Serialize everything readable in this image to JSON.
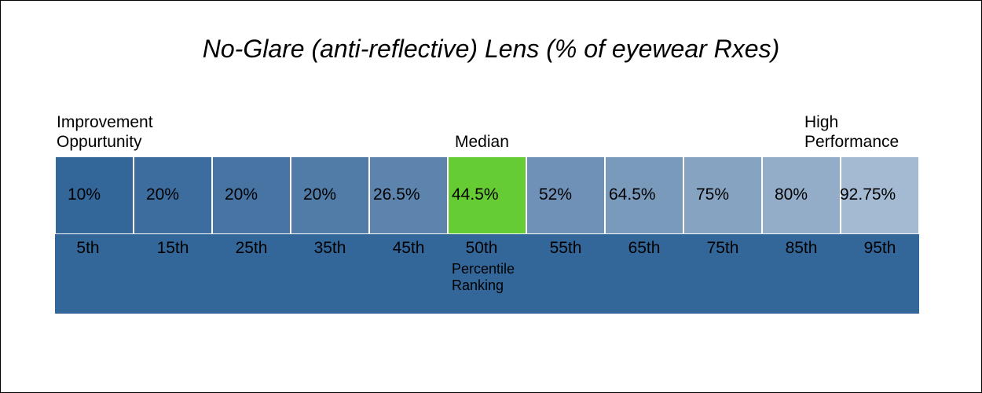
{
  "chart_data": {
    "type": "table",
    "title": "No-Glare (anti-reflective) Lens (% of eyewear Rxes)",
    "left_label": "Improvement\nOppurtunity",
    "median_label": "Median",
    "right_label": "High\nPerformance",
    "axis_label": "Percentile\nRanking",
    "categories": [
      "5th",
      "15th",
      "25th",
      "35th",
      "45th",
      "50th",
      "55th",
      "65th",
      "75th",
      "85th",
      "95th"
    ],
    "value_labels": [
      "10%",
      "20%",
      "20%",
      "20%",
      "26.5%",
      "44.5%",
      "52%",
      "64.5%",
      "75%",
      "80%",
      "92.75%"
    ],
    "values": [
      10,
      20,
      20,
      20,
      26.5,
      44.5,
      52,
      64.5,
      75,
      80,
      92.75
    ],
    "highlight_index": 5,
    "colors": {
      "cells": [
        "#336699",
        "#3d6d9e",
        "#4774a3",
        "#527ca8",
        "#5c84ad",
        "#66cc33",
        "#6f91b7",
        "#7a9abc",
        "#86a3c2",
        "#93adc9",
        "#a3bad2"
      ],
      "highlight": "#66cc33",
      "band": "#336699"
    }
  }
}
